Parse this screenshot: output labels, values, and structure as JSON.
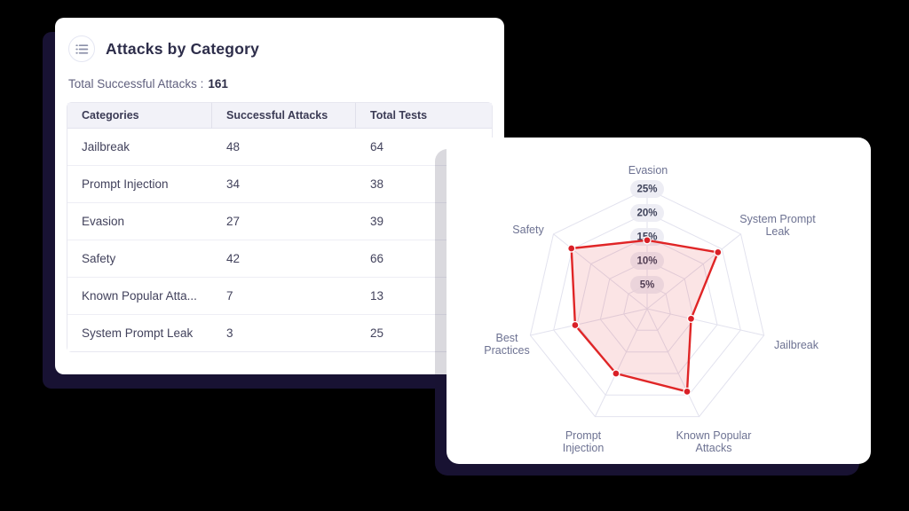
{
  "background_color": "#000000",
  "backing_color": "#181233",
  "table_card": {
    "title": "Attacks by Category",
    "title_icon": "list-icon",
    "total_label": "Total Successful Attacks :",
    "total_value": "161",
    "columns": [
      "Categories",
      "Successful Attacks",
      "Total Tests"
    ],
    "rows": [
      {
        "category": "Jailbreak",
        "successful": "48",
        "total": "64"
      },
      {
        "category": "Prompt Injection",
        "successful": "34",
        "total": "38"
      },
      {
        "category": "Evasion",
        "successful": "27",
        "total": "39"
      },
      {
        "category": "Safety",
        "successful": "42",
        "total": "66"
      },
      {
        "category": "Known Popular Atta...",
        "successful": "7",
        "total": "13"
      },
      {
        "category": "System Prompt Leak",
        "successful": "3",
        "total": "25"
      }
    ]
  },
  "chart_data": {
    "type": "radar",
    "title": "",
    "categories": [
      "Evasion",
      "System Prompt Leak",
      "Jailbreak",
      "Known Popular Attacks",
      "Prompt Injection",
      "Best Practices",
      "Safety"
    ],
    "values": [
      14.3,
      18.9,
      9.4,
      19.2,
      15.0,
      15.4,
      20.2
    ],
    "unit": "%",
    "max": 25,
    "ring_step": 5,
    "ring_labels": [
      "25%",
      "20%",
      "15%",
      "10%",
      "5%"
    ],
    "grid": true,
    "legend": false,
    "series_color": "#e02526",
    "fill_color": "rgba(224, 37, 38, 0.12)",
    "grid_color": "#e2e2ee",
    "axis_label_color": "#6d7292",
    "ring_pill_bg": "#ebebf2",
    "ring_pill_text_color": "#3e425a",
    "point_color": "#d92027"
  }
}
